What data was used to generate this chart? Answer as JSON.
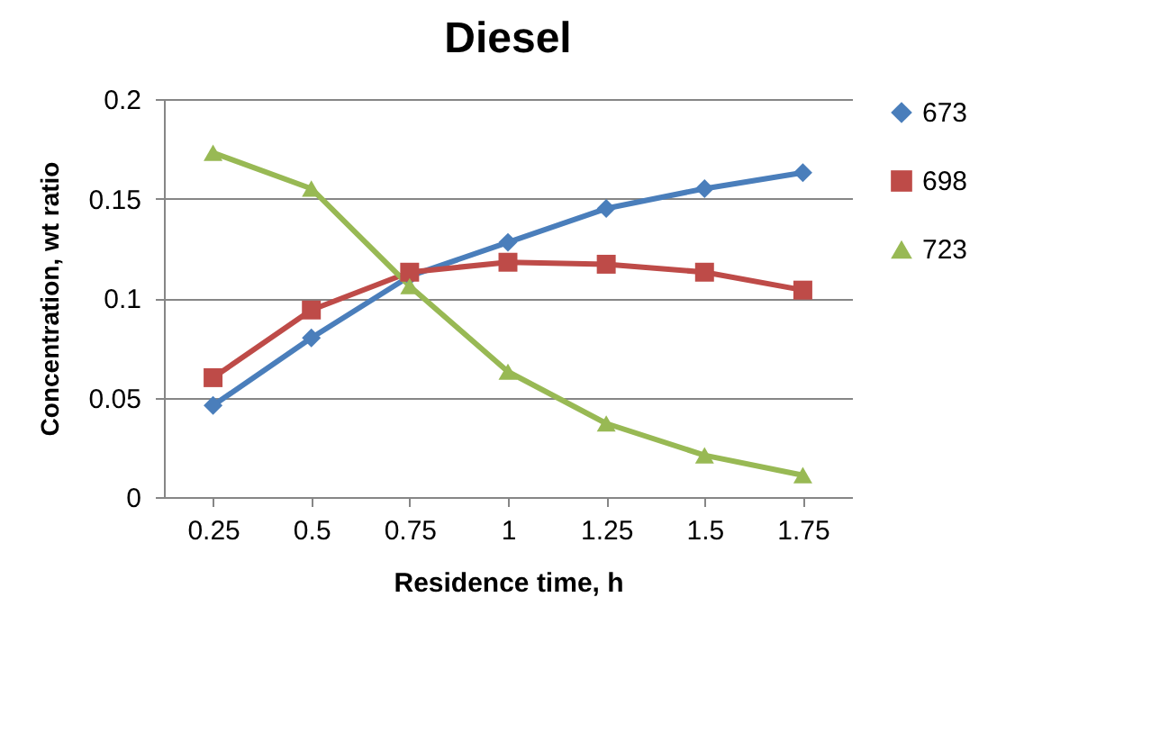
{
  "chart_data": {
    "type": "line",
    "title": "Diesel",
    "xlabel": "Residence time, h",
    "ylabel": "Concentration, wt ratio",
    "categories": [
      "0.25",
      "0.5",
      "0.75",
      "1",
      "1.25",
      "1.5",
      "1.75"
    ],
    "series": [
      {
        "name": "673",
        "color": "#4a7ebb",
        "marker": "diamond",
        "values": [
          0.046,
          0.08,
          0.111,
          0.128,
          0.145,
          0.155,
          0.163
        ]
      },
      {
        "name": "698",
        "color": "#be4b48",
        "marker": "square",
        "values": [
          0.06,
          0.094,
          0.113,
          0.118,
          0.117,
          0.113,
          0.104
        ]
      },
      {
        "name": "723",
        "color": "#98b954",
        "marker": "triangle",
        "values": [
          0.173,
          0.155,
          0.106,
          0.063,
          0.037,
          0.021,
          0.011
        ]
      }
    ],
    "ylim": [
      0,
      0.2
    ],
    "yticks": [
      0,
      0.05,
      0.1,
      0.15,
      0.2
    ],
    "grid": "y",
    "legend": "right"
  }
}
